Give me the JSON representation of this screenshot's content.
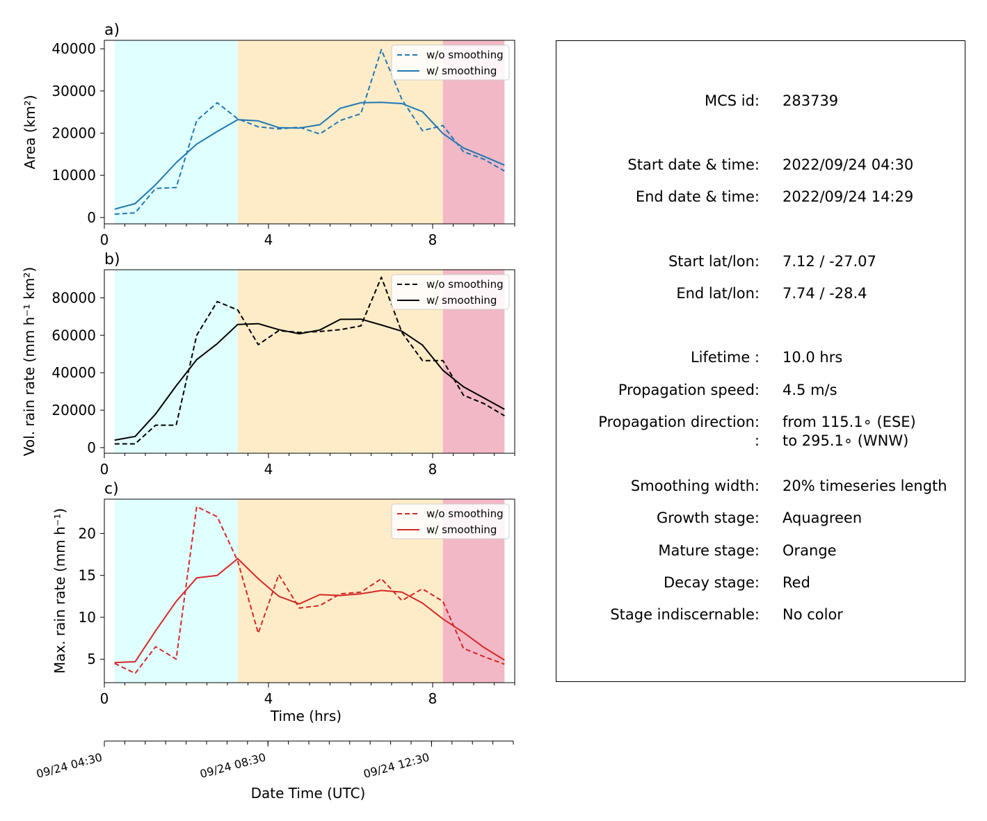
{
  "chart_data": {
    "type": "line",
    "shared": {
      "xlabel": "Time (hrs)",
      "x_ticks": [
        0,
        4,
        8
      ],
      "xlim": [
        0,
        10
      ],
      "x": [
        0.25,
        0.75,
        1.25,
        1.75,
        2.25,
        2.75,
        3.25,
        3.75,
        4.25,
        4.75,
        5.25,
        5.75,
        6.25,
        6.75,
        7.25,
        7.75,
        8.25,
        8.75,
        9.25,
        9.75
      ],
      "stages": [
        {
          "name": "growth",
          "x0": 0.25,
          "x1": 3.25,
          "color": "#e0ffff"
        },
        {
          "name": "mature",
          "x0": 3.25,
          "x1": 8.25,
          "color": "#feecc8"
        },
        {
          "name": "decay",
          "x0": 8.25,
          "x1": 9.75,
          "color": "#f2b8c5"
        }
      ],
      "secondary_axis": {
        "label": "Date Time (UTC)",
        "tick_labels": [
          {
            "x": 0,
            "label": "09/24 04:30"
          },
          {
            "x": 4,
            "label": "09/24 08:30"
          },
          {
            "x": 8,
            "label": "09/24 12:30"
          }
        ]
      }
    },
    "panels": [
      {
        "panel_label": "a)",
        "ylabel": "Area  (km²)",
        "ylim": [
          -1500,
          42000
        ],
        "y_ticks": [
          0,
          10000,
          20000,
          30000,
          40000
        ],
        "color": "#1f77b4",
        "legend": "top-right",
        "series": [
          {
            "name": "w/o smoothing",
            "style": "dashed",
            "values": [
              800,
              1100,
              6900,
              7100,
              23000,
              27200,
              23400,
              21500,
              21000,
              21400,
              19800,
              23000,
              24600,
              39800,
              28000,
              20600,
              21800,
              15600,
              13800,
              11000
            ]
          },
          {
            "name": "w/ smoothing",
            "style": "solid",
            "values": [
              2000,
              3300,
              7800,
              13000,
              17400,
              20400,
              23200,
              22900,
              21300,
              21200,
              22000,
              25900,
              27200,
              27300,
              27000,
              25100,
              19900,
              16500,
              14500,
              12400
            ]
          }
        ]
      },
      {
        "panel_label": "b)",
        "ylabel": "Vol. rain rate (mm h⁻¹ km²)",
        "ylim": [
          -3000,
          95000
        ],
        "y_ticks": [
          0,
          20000,
          40000,
          60000,
          80000
        ],
        "color": "#000000",
        "legend": "top-right",
        "series": [
          {
            "name": "w/o smoothing",
            "style": "dashed",
            "values": [
              2000,
              2000,
              12000,
              12000,
              60000,
              78000,
              73500,
              55000,
              62500,
              61500,
              62000,
              63000,
              65000,
              91000,
              61500,
              46500,
              46500,
              28000,
              23500,
              17000
            ]
          },
          {
            "name": "w/ smoothing",
            "style": "solid",
            "values": [
              4000,
              6000,
              18000,
              33000,
              47000,
              55500,
              65800,
              66200,
              63000,
              60800,
              62800,
              68500,
              68600,
              65500,
              62200,
              54800,
              41300,
              32500,
              26500,
              20500
            ]
          }
        ]
      },
      {
        "panel_label": "c)",
        "ylabel": "Max. rain rate  (mm h⁻¹)",
        "ylim": [
          2.2,
          24.1
        ],
        "y_ticks": [
          5,
          10,
          15,
          20
        ],
        "color": "#d62728",
        "legend": "top-right",
        "series": [
          {
            "name": "w/o smoothing",
            "style": "dashed",
            "values": [
              4.5,
              3.3,
              6.5,
              5.0,
              23.2,
              22.0,
              16.7,
              8.1,
              15.1,
              11.1,
              11.4,
              12.8,
              13.0,
              14.6,
              12.0,
              13.4,
              11.9,
              6.3,
              5.3,
              4.4
            ]
          },
          {
            "name": "w/ smoothing",
            "style": "solid",
            "values": [
              4.6,
              4.7,
              8.4,
              11.9,
              14.7,
              15.0,
              17.0,
              14.6,
              12.5,
              11.6,
              12.7,
              12.6,
              12.8,
              13.2,
              13.0,
              11.7,
              9.8,
              8.2,
              6.4,
              4.9
            ]
          }
        ]
      }
    ]
  },
  "info": [
    {
      "label": "MCS id:",
      "value": "283739"
    },
    {
      "label": "Start date & time:",
      "value": "2022/09/24 04:30"
    },
    {
      "label": "End date & time:",
      "value": "2022/09/24 14:29"
    },
    {
      "label": "Start lat/lon:",
      "value": "7.12 / -27.07"
    },
    {
      "label": "End lat/lon:",
      "value": "7.74 / -28.4"
    },
    {
      "label": "Lifetime :",
      "value": "10.0 hrs"
    },
    {
      "label": "Propagation speed:",
      "value": "4.5 m/s"
    },
    {
      "label": "Propagation direction:",
      "value": "from 115.1∘ (ESE)"
    },
    {
      "label": ":",
      "value": "to   295.1∘ (WNW)"
    },
    {
      "label": "Smoothing width:",
      "value": "20% timeseries length"
    },
    {
      "label": "Growth stage:",
      "value": "Aquagreen"
    },
    {
      "label": "Mature stage:",
      "value": "Orange"
    },
    {
      "label": "Decay stage:",
      "value": "Red"
    },
    {
      "label": "Stage indiscernable:",
      "value": "No color"
    }
  ]
}
